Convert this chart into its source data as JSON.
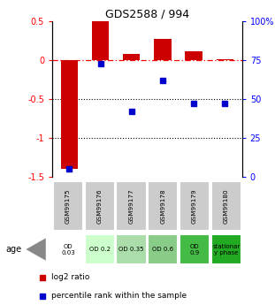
{
  "title": "GDS2588 / 994",
  "samples": [
    "GSM99175",
    "GSM99176",
    "GSM99177",
    "GSM99178",
    "GSM99179",
    "GSM99180"
  ],
  "log2_ratio": [
    -1.4,
    0.5,
    0.08,
    0.28,
    0.12,
    0.01
  ],
  "percentile_rank": [
    5,
    73,
    42,
    62,
    47,
    47
  ],
  "bar_color": "#cc0000",
  "dot_color": "#0000cc",
  "ylim_left": [
    -1.5,
    0.5
  ],
  "ylim_right": [
    0,
    100
  ],
  "yticks_left": [
    -1.5,
    -1.0,
    -0.5,
    0.0,
    0.5
  ],
  "ytick_labels_left": [
    "-1.5",
    "-1",
    "-0.5",
    "0",
    "0.5"
  ],
  "yticks_right": [
    0,
    25,
    50,
    75,
    100
  ],
  "ytick_labels_right": [
    "0",
    "25",
    "50",
    "75",
    "100%"
  ],
  "age_labels": [
    "OD\n0.03",
    "OD 0.2",
    "OD 0.35",
    "OD 0.6",
    "OD\n0.9",
    "stationar\ny phase"
  ],
  "age_bg_colors": [
    "#ffffff",
    "#ccffcc",
    "#aaddaa",
    "#88cc88",
    "#44bb44",
    "#22aa22"
  ],
  "sample_bg_color": "#cccccc",
  "legend_labels": [
    "log2 ratio",
    "percentile rank within the sample"
  ],
  "legend_colors": [
    "#cc0000",
    "#0000cc"
  ]
}
